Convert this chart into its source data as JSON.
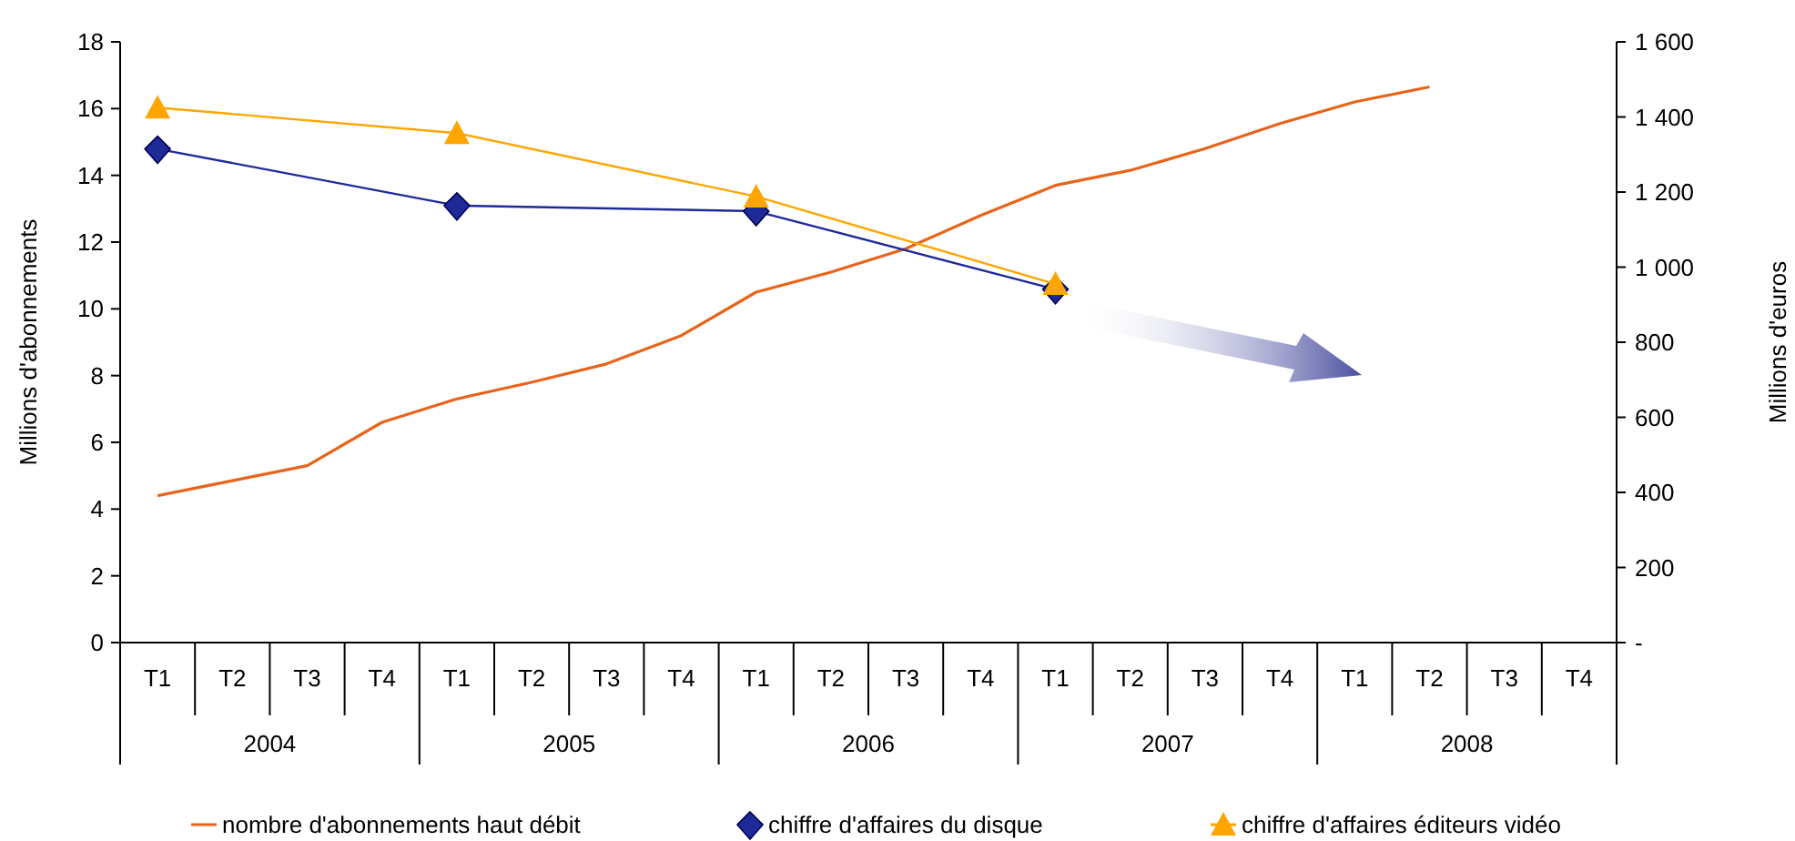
{
  "chart_data": {
    "type": "line",
    "categories": [
      "T1",
      "T2",
      "T3",
      "T4",
      "T1",
      "T2",
      "T3",
      "T4",
      "T1",
      "T2",
      "T3",
      "T4",
      "T1",
      "T2",
      "T3",
      "T4",
      "T1",
      "T2",
      "T3",
      "T4"
    ],
    "annotations": [
      "2004",
      "2005",
      "2006",
      "2007",
      "2008"
    ],
    "ylabel": "Millions d'abonnements",
    "y2label": "Millions d'euros",
    "ylim": [
      0,
      18
    ],
    "yticks": [
      0,
      2,
      4,
      6,
      8,
      10,
      12,
      14,
      16,
      18
    ],
    "y2lim": [
      0,
      1600
    ],
    "y2ticks": [
      {
        "value": 0,
        "label": "-"
      },
      {
        "value": 200,
        "label": "200"
      },
      {
        "value": 400,
        "label": "400"
      },
      {
        "value": 600,
        "label": "600"
      },
      {
        "value": 800,
        "label": "800"
      },
      {
        "value": 1000,
        "label": "1 000"
      },
      {
        "value": 1200,
        "label": "1 200"
      },
      {
        "value": 1400,
        "label": "1 400"
      },
      {
        "value": 1600,
        "label": "1 600"
      }
    ],
    "legend": "bottom",
    "grid": false,
    "series": [
      {
        "name": "nombre d'abonnements haut débit",
        "color": "#e8641b",
        "marker": "none",
        "values": [
          4.4,
          4.85,
          5.3,
          6.6,
          7.3,
          7.8,
          8.35,
          9.2,
          10.5,
          11.1,
          11.8,
          12.8,
          13.7,
          14.15,
          14.8,
          15.55,
          16.2,
          16.65,
          null,
          null
        ]
      },
      {
        "name": "chiffre d'affaires du disque",
        "color": "#1f2a99",
        "marker": "diamond",
        "axis": "y2",
        "values": [
          1315,
          null,
          null,
          null,
          1164,
          null,
          null,
          null,
          1149,
          null,
          null,
          null,
          941,
          null,
          null,
          null,
          null,
          null,
          null,
          null
        ]
      },
      {
        "name": "chiffre d'affaires éditeurs vidéo",
        "color": "#ffa500",
        "marker": "triangle",
        "axis": "y2",
        "values": [
          1425,
          null,
          null,
          null,
          1357,
          null,
          null,
          null,
          1188,
          null,
          null,
          null,
          955,
          null,
          null,
          null,
          null,
          null,
          null,
          null
        ]
      }
    ]
  }
}
